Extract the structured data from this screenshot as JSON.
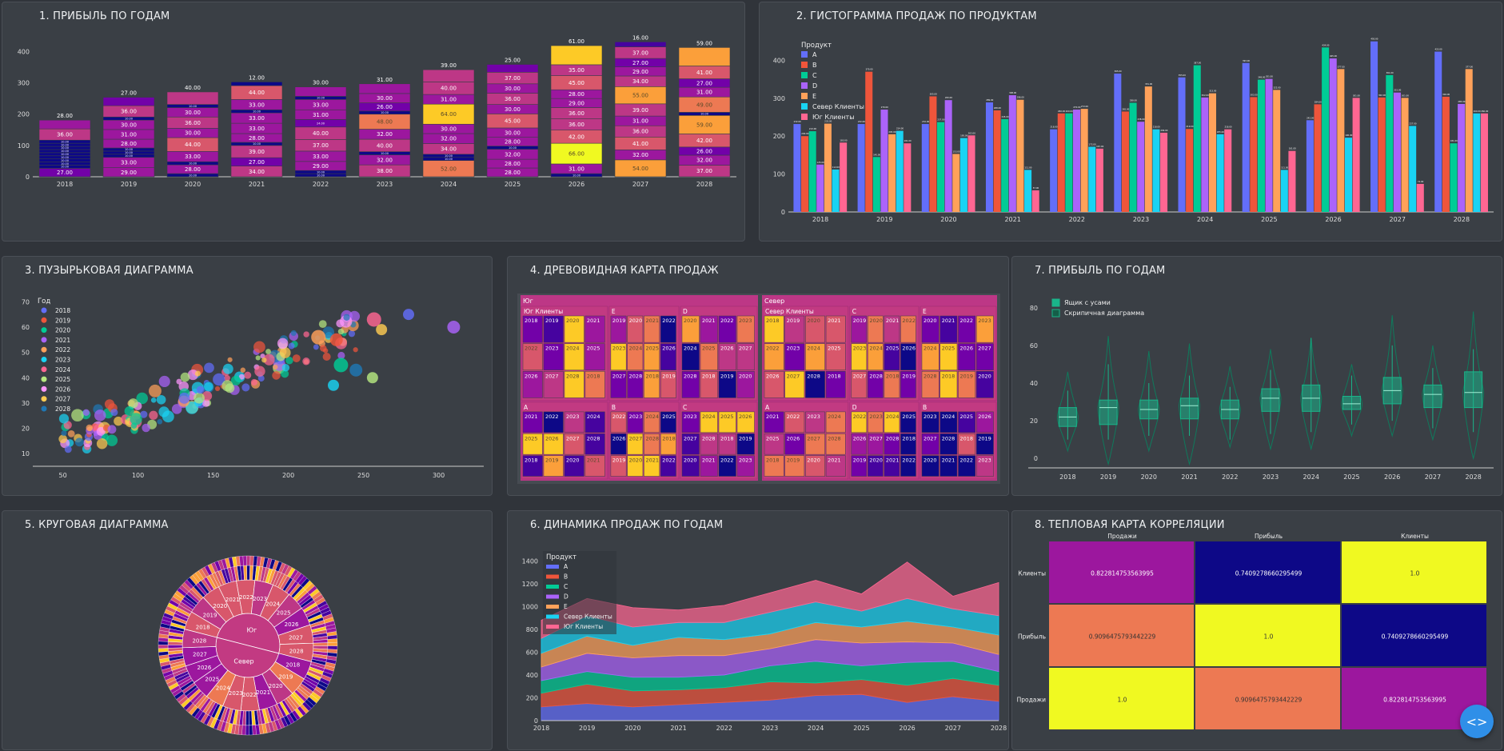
{
  "palette": {
    "plasma": [
      "#0d0887",
      "#46039f",
      "#7201a8",
      "#9c179e",
      "#bd3786",
      "#d8576b",
      "#ed7953",
      "#fb9f3a",
      "#fdca26",
      "#f0f921"
    ],
    "products": [
      "#636efa",
      "#ef553b",
      "#00cc96",
      "#ab63fa",
      "#ffa15a",
      "#19d3f3",
      "#ff6692"
    ],
    "teal": "#1ab58a"
  },
  "panels": {
    "p1": {
      "title": "1. ПРИБЫЛЬ ПО ГОДАМ"
    },
    "p2": {
      "title": "2. ГИСТОГРАММА ПРОДАЖ ПО ПРОДУКТАМ"
    },
    "p3": {
      "title": "3. ПУЗЫРЬКОВАЯ ДИАГРАММА"
    },
    "p4": {
      "title": "4. ДРЕВОВИДНАЯ КАРТА ПРОДАЖ"
    },
    "p7": {
      "title": "7. ПРИБЫЛЬ ПО ГОДАМ"
    },
    "p5": {
      "title": "5. КРУГОВАЯ ДИАГРАММА"
    },
    "p6": {
      "title": "6. ДИНАМИКА ПРОДАЖ ПО ГОДАМ"
    },
    "p8": {
      "title": "8. ТЕПЛОВАЯ КАРТА КОРРЕЛЯЦИИ"
    }
  },
  "chart_data": [
    {
      "id": "profit_stacked",
      "type": "bar",
      "title": "1. ПРИБЫЛЬ ПО ГОДАМ",
      "categories": [
        "2018",
        "2019",
        "2020",
        "2021",
        "2022",
        "2023",
        "2024",
        "2025",
        "2026",
        "2027",
        "2028"
      ],
      "ylim": [
        0,
        460
      ],
      "yticks": [
        0,
        100,
        200,
        300,
        400
      ],
      "stacks": [
        [
          27,
          10,
          10,
          10,
          10,
          10,
          10,
          10,
          10,
          10,
          36,
          28
        ],
        [
          29,
          33,
          10,
          10,
          10,
          28,
          31,
          30,
          10,
          36,
          27
        ],
        [
          10,
          28,
          10,
          33,
          44,
          30,
          36,
          30,
          10,
          40
        ],
        [
          34,
          27,
          39,
          10,
          28,
          33,
          33,
          10,
          33,
          44,
          12
        ],
        [
          10,
          10,
          29,
          33,
          37,
          40,
          24,
          31,
          33,
          10,
          30
        ],
        [
          38,
          32,
          10,
          40,
          32,
          48,
          10,
          26,
          30,
          31
        ],
        [
          52,
          10,
          10,
          34,
          32,
          30,
          64,
          31,
          40,
          39
        ],
        [
          28,
          28,
          32,
          10,
          28,
          30,
          45,
          30,
          36,
          30,
          37,
          25
        ],
        [
          10,
          31,
          66,
          42,
          36,
          36,
          29,
          28,
          45,
          35,
          61
        ],
        [
          54,
          32,
          41,
          36,
          31,
          39,
          55,
          34,
          29,
          27,
          37,
          16
        ],
        [
          37,
          32,
          26,
          42,
          59,
          10,
          49,
          31,
          27,
          41,
          59
        ]
      ]
    },
    {
      "id": "sales_grouped",
      "type": "bar",
      "title": "2. ГИСТОГРАММА ПРОДАЖ ПО ПРОДУКТАМ",
      "legend_title": "Продукт",
      "categories": [
        "2018",
        "2019",
        "2020",
        "2021",
        "2022",
        "2023",
        "2024",
        "2025",
        "2026",
        "2027",
        "2028"
      ],
      "ylim": [
        0,
        460
      ],
      "yticks": [
        0,
        100,
        200,
        300,
        400
      ],
      "series": [
        {
          "name": "A",
          "values": [
            232,
            232,
            232,
            289,
            218,
            365,
            355,
            393,
            242,
            450,
            423
          ]
        },
        {
          "name": "B",
          "values": [
            200,
            370,
            305,
            268,
            260,
            265,
            219,
            303,
            284,
            302,
            304
          ]
        },
        {
          "name": "C",
          "values": [
            213,
            145,
            237,
            245,
            260,
            288,
            387,
            349,
            434,
            361,
            181
          ]
        },
        {
          "name": "D",
          "values": [
            125,
            270,
            295,
            308,
            270,
            238,
            302,
            351,
            405,
            315,
            285
          ]
        },
        {
          "name": "E",
          "values": [
            233,
            205,
            153,
            296,
            272,
            331,
            313,
            322,
            377,
            301,
            377
          ]
        },
        {
          "name": "Север Клиенты",
          "values": [
            112,
            214,
            195,
            111,
            172,
            218,
            205,
            111,
            196,
            227,
            260
          ]
        },
        {
          "name": "Юг Клиенты",
          "values": [
            183,
            181,
            202,
            57,
            167,
            209,
            218,
            161,
            301,
            74,
            260
          ]
        }
      ]
    },
    {
      "id": "bubbles",
      "type": "scatter",
      "title": "3. ПУЗЫРЬКОВАЯ ДИАГРАММА",
      "legend_title": "Год",
      "legend": [
        "2018",
        "2019",
        "2020",
        "2021",
        "2022",
        "2023",
        "2024",
        "2025",
        "2026",
        "2027",
        "2028"
      ],
      "xlim": [
        30,
        330
      ],
      "xticks": [
        50,
        100,
        150,
        200,
        250,
        300
      ],
      "ylim": [
        5,
        72
      ],
      "yticks": [
        10,
        20,
        30,
        40,
        50,
        60,
        70
      ],
      "highlights": [
        [
          280,
          65
        ],
        [
          310,
          60
        ],
        [
          257,
          63
        ],
        [
          262,
          59
        ],
        [
          232,
          55
        ],
        [
          220,
          56
        ],
        [
          256,
          40
        ],
        [
          245,
          43
        ],
        [
          235,
          45
        ],
        [
          230,
          37
        ]
      ]
    },
    {
      "id": "treemap",
      "type": "treemap",
      "title": "4. ДРЕВОВИДНАЯ КАРТА ПРОДАЖ",
      "regions": [
        {
          "name": "Юг",
          "groups": [
            "Юг Клиенты",
            "E",
            "D",
            "A",
            "B",
            "C"
          ]
        },
        {
          "name": "Север",
          "groups": [
            "Север Клиенты",
            "C",
            "E",
            "A",
            "D",
            "B"
          ]
        }
      ],
      "year_labels": [
        "2018",
        "2019",
        "2020",
        "2021",
        "2022",
        "2023",
        "2024",
        "2025",
        "2026",
        "2027",
        "2028"
      ]
    },
    {
      "id": "box_violin",
      "type": "box",
      "title": "7. ПРИБЫЛЬ ПО ГОДАМ",
      "legend": [
        "Ящик с усами",
        "Скрипичная диаграмма"
      ],
      "categories": [
        "2018",
        "2019",
        "2020",
        "2021",
        "2022",
        "2023",
        "2024",
        "2025",
        "2026",
        "2027",
        "2028"
      ],
      "ylim": [
        -5,
        85
      ],
      "yticks": [
        0,
        20,
        40,
        60,
        80
      ],
      "boxes": [
        {
          "min": 10,
          "q1": 17,
          "med": 22,
          "q3": 27,
          "max": 36,
          "vmin": 4,
          "vmax": 46
        },
        {
          "min": 10,
          "q1": 18,
          "med": 27,
          "q3": 31,
          "max": 50,
          "vmin": -3,
          "vmax": 65
        },
        {
          "min": 12,
          "q1": 21,
          "med": 26,
          "q3": 31,
          "max": 40,
          "vmin": 4,
          "vmax": 57
        },
        {
          "min": 12,
          "q1": 21,
          "med": 28,
          "q3": 32,
          "max": 44,
          "vmin": -3,
          "vmax": 61
        },
        {
          "min": 10,
          "q1": 21,
          "med": 26,
          "q3": 31,
          "max": 38,
          "vmin": 6,
          "vmax": 49
        },
        {
          "min": 13,
          "q1": 25,
          "med": 32,
          "q3": 37,
          "max": 47,
          "vmin": 5,
          "vmax": 58
        },
        {
          "min": 14,
          "q1": 25,
          "med": 32,
          "q3": 39,
          "max": 64,
          "vmin": 5,
          "vmax": 64
        },
        {
          "min": 18,
          "q1": 26,
          "med": 29,
          "q3": 33,
          "max": 44,
          "vmin": 12,
          "vmax": 50
        },
        {
          "min": 20,
          "q1": 29,
          "med": 36,
          "q3": 43,
          "max": 60,
          "vmin": 12,
          "vmax": 76
        },
        {
          "min": 16,
          "q1": 27,
          "med": 34,
          "q3": 39,
          "max": 48,
          "vmin": 10,
          "vmax": 60
        },
        {
          "min": 14,
          "q1": 27,
          "med": 35,
          "q3": 46,
          "max": 58,
          "vmin": 0,
          "vmax": 78
        }
      ]
    },
    {
      "id": "sunburst",
      "type": "pie",
      "title": "5. КРУГОВАЯ ДИАГРАММА",
      "center": [
        "Юг",
        "Север"
      ],
      "years": [
        "2018",
        "2019",
        "2020",
        "2021",
        "2022",
        "2023",
        "2024",
        "2025",
        "2026",
        "2027",
        "2028"
      ]
    },
    {
      "id": "area",
      "type": "area",
      "title": "6. ДИНАМИКА ПРОДАЖ ПО ГОДАМ",
      "legend_title": "Продукт",
      "categories": [
        "2018",
        "2019",
        "2020",
        "2021",
        "2022",
        "2023",
        "2024",
        "2025",
        "2026",
        "2027",
        "2028"
      ],
      "ylim": [
        0,
        1500
      ],
      "yticks": [
        0,
        200,
        400,
        600,
        800,
        1000,
        1200,
        1400
      ],
      "series": [
        {
          "name": "A",
          "values": [
            120,
            150,
            120,
            140,
            160,
            180,
            220,
            230,
            160,
            210,
            170
          ]
        },
        {
          "name": "B",
          "values": [
            120,
            170,
            140,
            130,
            130,
            160,
            110,
            130,
            150,
            160,
            140
          ]
        },
        {
          "name": "C",
          "values": [
            110,
            110,
            120,
            110,
            110,
            140,
            190,
            120,
            200,
            150,
            120
          ]
        },
        {
          "name": "D",
          "values": [
            120,
            160,
            170,
            190,
            170,
            150,
            190,
            200,
            180,
            160,
            150
          ]
        },
        {
          "name": "E",
          "values": [
            120,
            150,
            110,
            160,
            140,
            130,
            150,
            140,
            180,
            140,
            170
          ]
        },
        {
          "name": "Север Клиенты",
          "values": [
            130,
            180,
            160,
            130,
            150,
            190,
            180,
            140,
            200,
            160,
            170
          ]
        },
        {
          "name": "Юг Клиенты",
          "values": [
            160,
            150,
            170,
            110,
            150,
            170,
            190,
            150,
            320,
            110,
            290
          ]
        }
      ]
    },
    {
      "id": "heatmap",
      "type": "heatmap",
      "title": "8. ТЕПЛОВАЯ КАРТА КОРРЕЛЯЦИИ",
      "columns": [
        "Продажи",
        "Прибыль",
        "Клиенты"
      ],
      "rows": [
        "Клиенты",
        "Прибыль",
        "Продажи"
      ],
      "values": [
        [
          "0.822814753563995",
          "0.7409278660295499",
          "1.0"
        ],
        [
          "0.9096475793442229",
          "1.0",
          "0.7409278660295499"
        ],
        [
          "1.0",
          "0.9096475793442229",
          "0.822814753563995"
        ]
      ],
      "colors": [
        [
          "#9c179e",
          "#0d0887",
          "#f0f921"
        ],
        [
          "#ed7953",
          "#f0f921",
          "#0d0887"
        ],
        [
          "#f0f921",
          "#ed7953",
          "#9c179e"
        ]
      ]
    }
  ]
}
